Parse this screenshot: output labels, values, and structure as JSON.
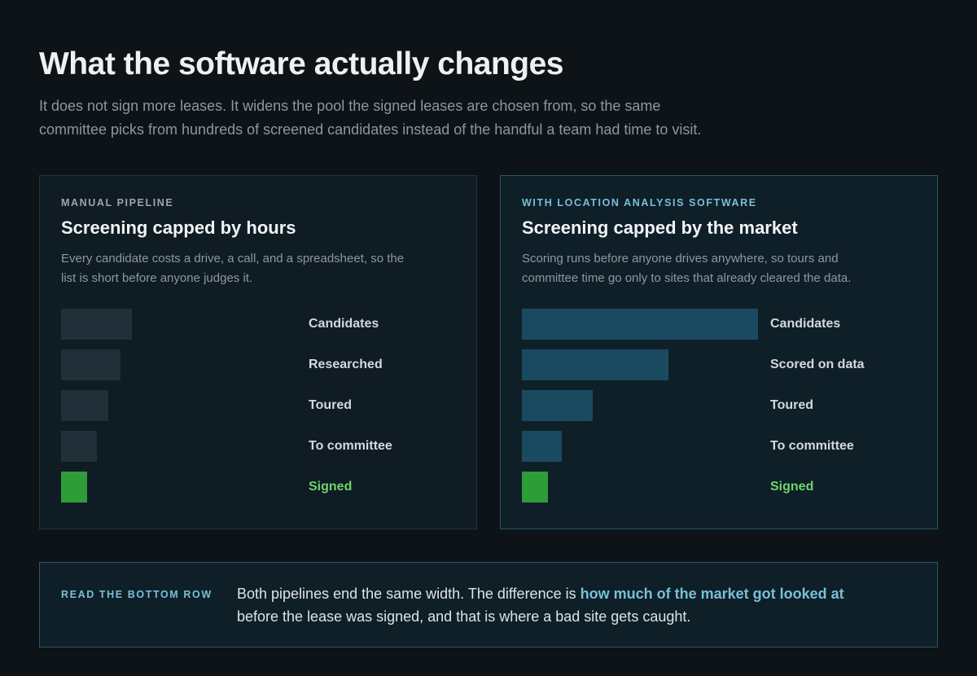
{
  "header": {
    "title": "What the software actually changes",
    "intro_line1": "It does not sign more leases. It widens the pool the signed leases are chosen from, so the same",
    "intro_line2": "committee picks from hundreds of screened candidates instead of the handful a team had time to visit."
  },
  "manual": {
    "eyebrow": "MANUAL PIPELINE",
    "title": "Screening capped by hours",
    "desc_line1": "Every candidate costs a drive, a call, and a spreadsheet, so the",
    "desc_line2": "list is short before anyone judges it.",
    "stages": [
      {
        "label": "Candidates",
        "relative_width": 0.3
      },
      {
        "label": "Researched",
        "relative_width": 0.25
      },
      {
        "label": "Toured",
        "relative_width": 0.2
      },
      {
        "label": "To committee",
        "relative_width": 0.15
      },
      {
        "label": "Signed",
        "relative_width": 0.11
      }
    ]
  },
  "software": {
    "eyebrow": "WITH LOCATION ANALYSIS SOFTWARE",
    "title": "Screening capped by the market",
    "desc_line1": "Scoring runs before anyone drives anywhere, so tours and",
    "desc_line2": "committee time go only to sites that already cleared the data.",
    "stages": [
      {
        "label": "Candidates",
        "relative_width": 1.0
      },
      {
        "label": "Scored on data",
        "relative_width": 0.62
      },
      {
        "label": "Toured",
        "relative_width": 0.3
      },
      {
        "label": "To committee",
        "relative_width": 0.17
      },
      {
        "label": "Signed",
        "relative_width": 0.11
      }
    ]
  },
  "callout": {
    "tag": "READ THE BOTTOM ROW",
    "text_before": "Both pipelines end the same width. The difference is ",
    "highlight": "how much of the market got looked at",
    "text_after": "before the lease was signed, and that is where a bad site gets caught."
  },
  "colors": {
    "background": "#0d1317",
    "accent": "#79bfd9",
    "signed_green": "#2e9c38",
    "manual_bar": "#232f38",
    "software_bar": "#1a4a60"
  }
}
